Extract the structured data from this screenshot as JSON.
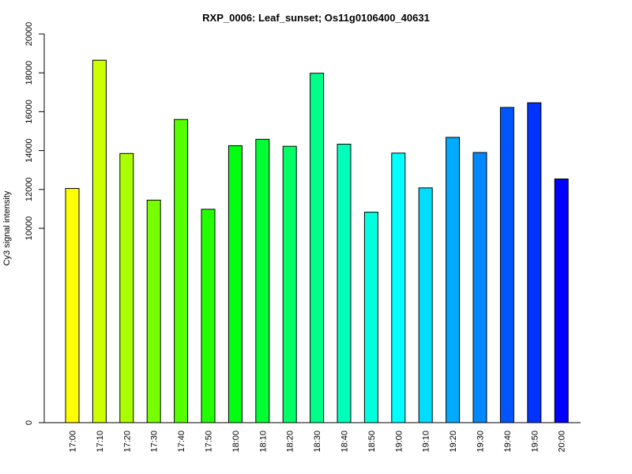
{
  "chart_data": {
    "type": "bar",
    "title": "RXP_0006: Leaf_sunset; Os11g0106400_40631",
    "xlabel": "",
    "ylabel": "Cy3 signal intensity",
    "ylim": [
      0,
      20000
    ],
    "yticks": [
      0,
      10000,
      12000,
      14000,
      16000,
      18000,
      20000
    ],
    "grid": false,
    "legend": "none",
    "categories": [
      "17:00",
      "17:10",
      "17:20",
      "17:30",
      "17:40",
      "17:50",
      "18:00",
      "18:10",
      "18:20",
      "18:30",
      "18:40",
      "18:50",
      "19:00",
      "19:10",
      "19:20",
      "19:30",
      "19:40",
      "19:50",
      "20:00"
    ],
    "values": [
      12050,
      18650,
      13850,
      11450,
      15600,
      10980,
      14250,
      14580,
      14220,
      17980,
      14330,
      10830,
      13870,
      12080,
      14680,
      13900,
      16220,
      16460,
      12540
    ],
    "colors": [
      "#FFFF00",
      "#CCFF00",
      "#AAFF00",
      "#77FF00",
      "#55FF00",
      "#22FF00",
      "#00FF11",
      "#00FF33",
      "#00FF66",
      "#00FF88",
      "#00FFBB",
      "#00FFDD",
      "#00FFFF",
      "#00DDFF",
      "#00AAFF",
      "#0088FF",
      "#0055FF",
      "#0033FF",
      "#0000FF"
    ]
  }
}
